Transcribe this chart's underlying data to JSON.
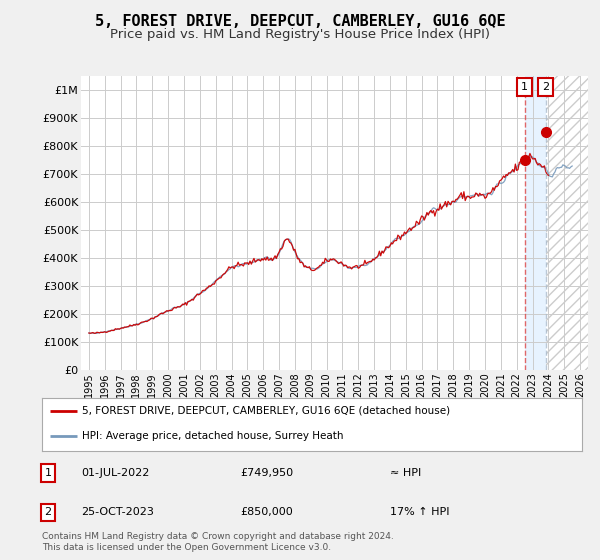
{
  "title": "5, FOREST DRIVE, DEEPCUT, CAMBERLEY, GU16 6QE",
  "subtitle": "Price paid vs. HM Land Registry's House Price Index (HPI)",
  "title_fontsize": 11,
  "subtitle_fontsize": 9.5,
  "ylim": [
    0,
    1050000
  ],
  "yticks": [
    0,
    100000,
    200000,
    300000,
    400000,
    500000,
    600000,
    700000,
    800000,
    900000,
    1000000
  ],
  "ytick_labels": [
    "£0",
    "£100K",
    "£200K",
    "£300K",
    "£400K",
    "£500K",
    "£600K",
    "£700K",
    "£800K",
    "£900K",
    "£1M"
  ],
  "background_color": "#f0f0f0",
  "plot_bg_color": "#ffffff",
  "grid_color": "#cccccc",
  "line1_color": "#cc0000",
  "line2_color": "#7799bb",
  "marker_color": "#cc0000",
  "vline1_color": "#dd4444",
  "vline2_color": "#aabbcc",
  "shade_color": "#ddeeff",
  "hatch_color": "#cccccc",
  "legend1_label": "5, FOREST DRIVE, DEEPCUT, CAMBERLEY, GU16 6QE (detached house)",
  "legend2_label": "HPI: Average price, detached house, Surrey Heath",
  "transaction1_num": "1",
  "transaction1_date": "01-JUL-2022",
  "transaction1_price": "£749,950",
  "transaction1_hpi": "≈ HPI",
  "transaction2_num": "2",
  "transaction2_date": "25-OCT-2023",
  "transaction2_price": "£850,000",
  "transaction2_hpi": "17% ↑ HPI",
  "footer": "Contains HM Land Registry data © Crown copyright and database right 2024.\nThis data is licensed under the Open Government Licence v3.0.",
  "transaction1_x_year": 2022.5,
  "transaction2_x_year": 2023.83,
  "transaction1_y": 749950,
  "transaction2_y": 850000,
  "xtick_years": [
    1995,
    1996,
    1997,
    1998,
    1999,
    2000,
    2001,
    2002,
    2003,
    2004,
    2005,
    2006,
    2007,
    2008,
    2009,
    2010,
    2011,
    2012,
    2013,
    2014,
    2015,
    2016,
    2017,
    2018,
    2019,
    2020,
    2021,
    2022,
    2023,
    2024,
    2025,
    2026
  ],
  "xmin": 1994.5,
  "xmax": 2026.5
}
